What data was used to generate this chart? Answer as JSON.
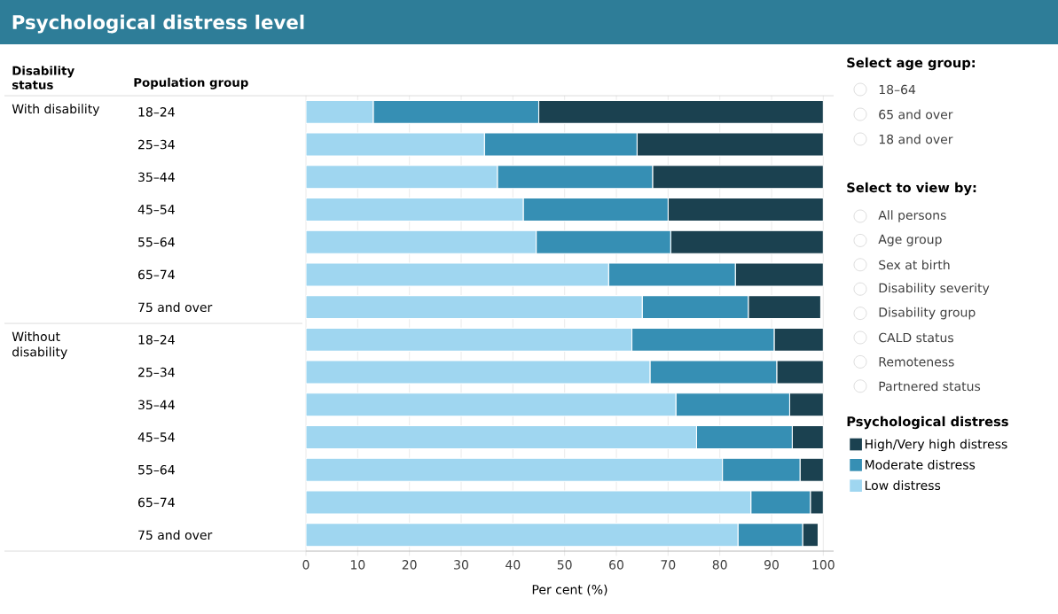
{
  "chart_data": {
    "type": "bar",
    "orientation": "horizontal",
    "stacked": true,
    "title": "Psychological distress level",
    "xlabel": "Per cent (%)",
    "legend_title": "Psychological distress",
    "legend": "right",
    "grid": "x",
    "categories": [
      "18–24",
      "25–34",
      "35–44",
      "45–54",
      "55–64",
      "65–74",
      "75 and over",
      "18–24",
      "25–34",
      "35–44",
      "45–54",
      "55–64",
      "65–74",
      "75 and over"
    ],
    "series": [
      {
        "name": "Low distress",
        "color": "#9fd6f0",
        "values": [
          13,
          34.5,
          37,
          42,
          44.5,
          58.5,
          65,
          63,
          66.5,
          71.5,
          75.5,
          80.5,
          86,
          83.5
        ]
      },
      {
        "name": "Moderate distress",
        "color": "#368fb4",
        "values": [
          32,
          29.5,
          30,
          28,
          26,
          24.5,
          20.5,
          27.5,
          24.5,
          22,
          18.5,
          15,
          11.5,
          12.5
        ]
      },
      {
        "name": "High/Very high distress",
        "color": "#1b4150",
        "values": [
          55,
          36,
          33,
          30,
          29.5,
          17,
          14,
          9.5,
          9,
          6.5,
          6,
          4.5,
          2.5,
          3
        ]
      }
    ],
    "xlim": [
      0,
      102
    ],
    "xticks": [
      0,
      10,
      20,
      30,
      40,
      50,
      60,
      70,
      80,
      90,
      100
    ],
    "annotations": [
      "Disability status",
      "Population group",
      "With disability",
      "Without disability",
      "Select age group:",
      "18–64",
      "65 and over",
      "18 and over",
      "Select to view by:",
      "All persons",
      "Age group",
      "Sex at birth",
      "Disability severity",
      "Disability group",
      "CALD status",
      "Remoteness",
      "Partnered status"
    ]
  }
}
